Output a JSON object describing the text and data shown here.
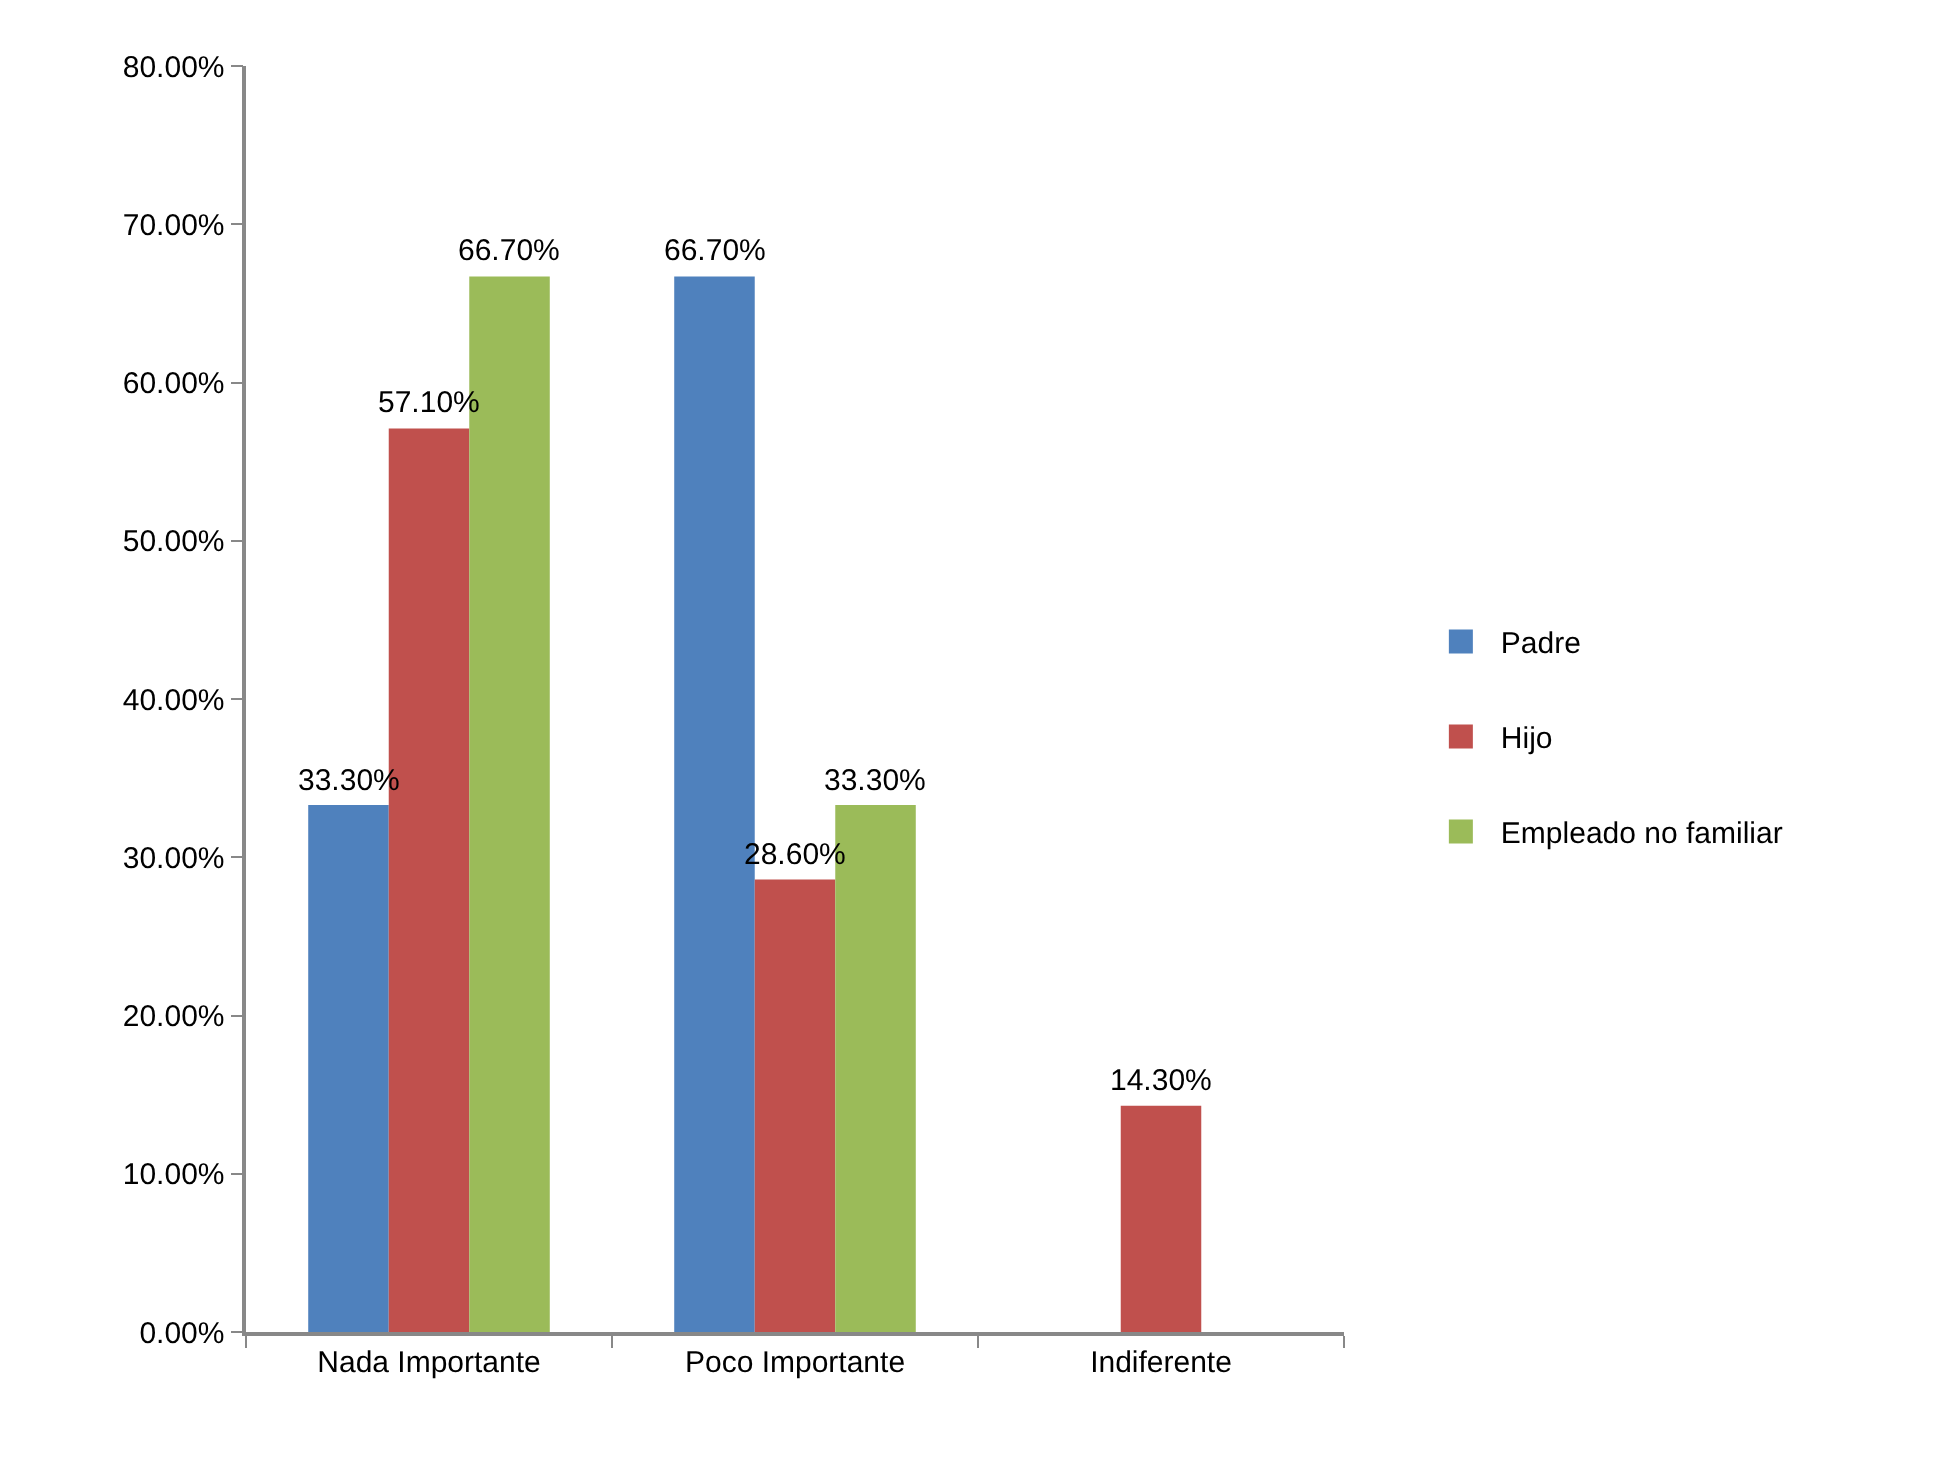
{
  "chart_data": {
    "type": "bar",
    "categories": [
      "Nada Importante",
      "Poco Importante",
      "Indiferente"
    ],
    "series": [
      {
        "name": "Padre",
        "color": "#4f81bd",
        "values": [
          33.3,
          66.7,
          null
        ],
        "value_labels": [
          "33.30%",
          "66.70%",
          null
        ]
      },
      {
        "name": "Hijo",
        "color": "#c0504d",
        "values": [
          57.1,
          28.6,
          14.3
        ],
        "value_labels": [
          "57.10%",
          "28.60%",
          "14.30%"
        ]
      },
      {
        "name": "Empleado no familiar",
        "color": "#9bbb59",
        "values": [
          66.7,
          33.3,
          null
        ],
        "value_labels": [
          "66.70%",
          "33.30%",
          null
        ]
      }
    ],
    "ylim": [
      0,
      80
    ],
    "yticks": [
      {
        "value": 0,
        "label": "0.00%"
      },
      {
        "value": 10,
        "label": "10.00%"
      },
      {
        "value": 20,
        "label": "20.00%"
      },
      {
        "value": 30,
        "label": "30.00%"
      },
      {
        "value": 40,
        "label": "40.00%"
      },
      {
        "value": 50,
        "label": "50.00%"
      },
      {
        "value": 60,
        "label": "60.00%"
      },
      {
        "value": 70,
        "label": "70.00%"
      },
      {
        "value": 80,
        "label": "80.00%"
      }
    ],
    "grid": false,
    "legend": "right"
  }
}
